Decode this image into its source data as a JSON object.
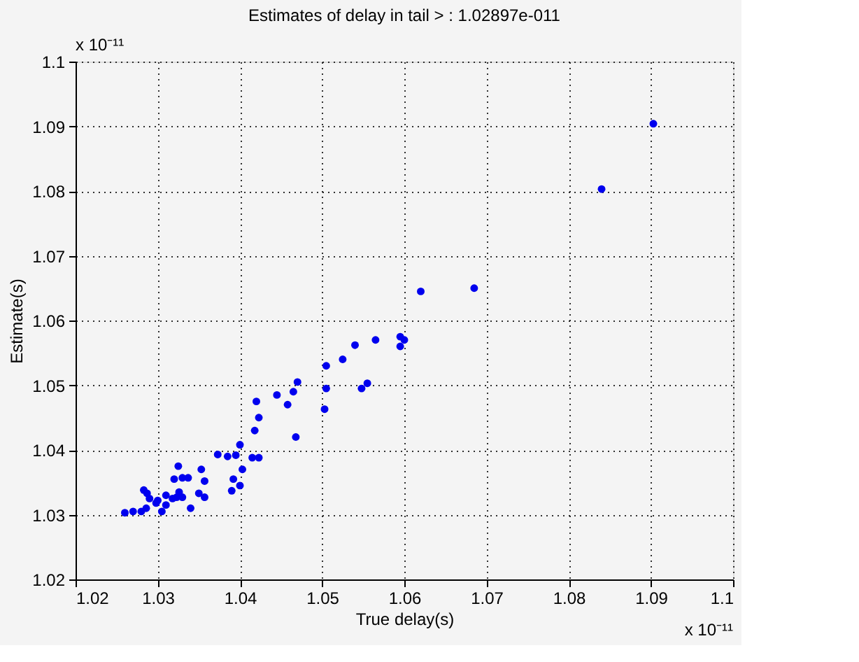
{
  "chart_data": {
    "type": "scatter",
    "title": "Estimates of delay in tail > : 1.02897e-011",
    "xlabel": "True delay(s)",
    "ylabel": "Estimate(s)",
    "annotations": [
      "x 10⁻¹¹",
      "x 10⁻¹¹"
    ],
    "x": [
      1.0903,
      1.084,
      1.0685,
      1.062,
      1.0595,
      1.06,
      1.0595,
      1.0565,
      1.054,
      1.0525,
      1.0548,
      1.0555,
      1.0505,
      1.0505,
      1.0503,
      1.047,
      1.0465,
      1.0445,
      1.0458,
      1.0468,
      1.042,
      1.0423,
      1.0418,
      1.04,
      1.0423,
      1.0403,
      1.0385,
      1.0395,
      1.0373,
      1.0392,
      1.039,
      1.04,
      1.0415,
      1.0357,
      1.027,
      1.028,
      1.0287,
      1.029,
      1.0286,
      1.0305,
      1.031,
      1.0318,
      1.0323,
      1.0326,
      1.032,
      1.0325,
      1.033,
      1.0337,
      1.034,
      1.035,
      1.0357,
      1.0353,
      1.033,
      1.03,
      1.031,
      1.026,
      1.0283,
      1.0298
    ],
    "values": [
      1.0904,
      1.0803,
      1.065,
      1.0645,
      1.0575,
      1.057,
      1.056,
      1.057,
      1.0562,
      1.054,
      1.0495,
      1.0503,
      1.053,
      1.0495,
      1.0463,
      1.0505,
      1.049,
      1.0485,
      1.047,
      1.042,
      1.0475,
      1.045,
      1.043,
      1.0408,
      1.0388,
      1.037,
      1.039,
      1.0392,
      1.0393,
      1.0355,
      1.0337,
      1.0345,
      1.0388,
      1.0352,
      1.0305,
      1.0305,
      1.0333,
      1.0325,
      1.031,
      1.0305,
      1.0315,
      1.0325,
      1.0327,
      1.0335,
      1.0355,
      1.0375,
      1.0357,
      1.0357,
      1.031,
      1.0333,
      1.0327,
      1.037,
      1.0327,
      1.0322,
      1.033,
      1.0303,
      1.0338,
      1.0318
    ],
    "color": "#0000ee",
    "marker": "circle",
    "grid": true,
    "xlim": [
      1.02,
      1.1
    ],
    "xticks": [
      1.02,
      1.03,
      1.04,
      1.05,
      1.06,
      1.07,
      1.08,
      1.09,
      1.1
    ],
    "ylim": [
      1.02,
      1.1
    ],
    "yticks": [
      1.02,
      1.03,
      1.04,
      1.05,
      1.06,
      1.07,
      1.08,
      1.09,
      1.1
    ]
  }
}
